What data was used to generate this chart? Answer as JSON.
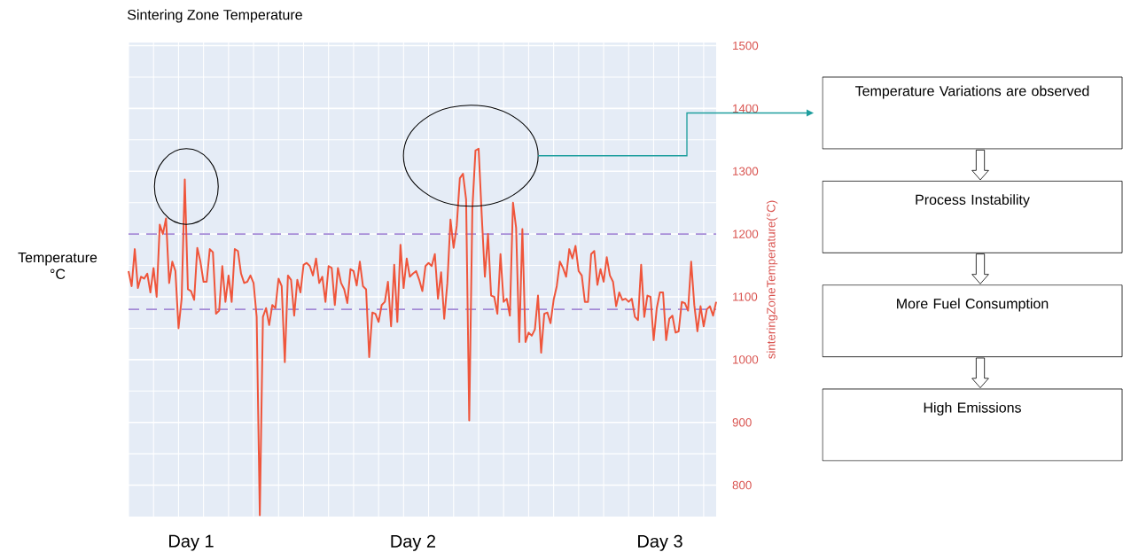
{
  "chart_data": {
    "type": "line",
    "title": "Sintering Zone Temperature",
    "ylabel": "sinteringZoneTemperature(°C)",
    "annotations": [
      "Temperature °C",
      "Temperature Variations are observed",
      "Process Instability",
      "More Fuel Consumption",
      "High Emissions"
    ],
    "categories": [
      null,
      null,
      null,
      null,
      null,
      null,
      null,
      null,
      null,
      null,
      null,
      null,
      null,
      null,
      null,
      null,
      null,
      null,
      null,
      null,
      "Day 1",
      null,
      null,
      null,
      null,
      null,
      null,
      null,
      null,
      null,
      null,
      null,
      null,
      null,
      null,
      null,
      null,
      null,
      null,
      null,
      null,
      null,
      null,
      null,
      null,
      null,
      null,
      null,
      null,
      null,
      null,
      null,
      null,
      null,
      null,
      null,
      null,
      null,
      null,
      null,
      null,
      null,
      null,
      null,
      null,
      null,
      null,
      null,
      null,
      null,
      null,
      null,
      null,
      null,
      null,
      null,
      null,
      null,
      null,
      null,
      null,
      null,
      null,
      null,
      null,
      null,
      null,
      null,
      null,
      null,
      null,
      "Day 2",
      null,
      null,
      null,
      null,
      null,
      null,
      null,
      null,
      null,
      null,
      null,
      null,
      null,
      null,
      null,
      null,
      null,
      null,
      null,
      null,
      null,
      null,
      null,
      null,
      null,
      null,
      null,
      null,
      null,
      null,
      null,
      null,
      null,
      null,
      null,
      null,
      null,
      null,
      null,
      null,
      null,
      null,
      null,
      null,
      null,
      null,
      null,
      null,
      null,
      null,
      null,
      null,
      null,
      null,
      null,
      null,
      null,
      null,
      null,
      null,
      null,
      null,
      null,
      null,
      null,
      null,
      null,
      null,
      null,
      null,
      null,
      null,
      null,
      null,
      null,
      null,
      null,
      null,
      "Day 3",
      null,
      null,
      null,
      null,
      null,
      null,
      null,
      null,
      null,
      null,
      null,
      null,
      null,
      null,
      null,
      null,
      null,
      null
    ],
    "values": [
      1141,
      1117,
      1176,
      1114,
      1132,
      1129,
      1137,
      1107,
      1146,
      1100,
      1215,
      1200,
      1225,
      1122,
      1156,
      1141,
      1050,
      1097,
      1287,
      1112,
      1109,
      1095,
      1178,
      1156,
      1124,
      1124,
      1176,
      1171,
      1073,
      1078,
      1149,
      1092,
      1134,
      1092,
      1176,
      1173,
      1137,
      1122,
      1124,
      1134,
      1122,
      1068,
      752,
      1068,
      1082,
      1055,
      1087,
      1082,
      1129,
      1117,
      996,
      1134,
      1127,
      1070,
      1127,
      1107,
      1151,
      1154,
      1149,
      1134,
      1161,
      1122,
      1132,
      1092,
      1149,
      1146,
      1087,
      1146,
      1122,
      1112,
      1090,
      1144,
      1141,
      1118,
      1156,
      1117,
      1112,
      1004,
      1075,
      1073,
      1060,
      1087,
      1092,
      1124,
      1053,
      1151,
      1060,
      1183,
      1114,
      1161,
      1132,
      1137,
      1141,
      1127,
      1109,
      1149,
      1154,
      1149,
      1168,
      1097,
      1139,
      1065,
      1122,
      1223,
      1178,
      1213,
      1289,
      1296,
      1255,
      903,
      1240,
      1333,
      1336,
      1230,
      1132,
      1200,
      1102,
      1100,
      1073,
      1168,
      1092,
      1097,
      1070,
      1250,
      1210,
      1028,
      1208,
      1028,
      1043,
      1038,
      1048,
      1102,
      1011,
      1073,
      1075,
      1058,
      1095,
      1117,
      1156,
      1146,
      1132,
      1176,
      1161,
      1181,
      1141,
      1134,
      1092,
      1092,
      1168,
      1173,
      1119,
      1144,
      1124,
      1163,
      1134,
      1124,
      1085,
      1107,
      1095,
      1097,
      1092,
      1097,
      1068,
      1063,
      1151,
      1068,
      1102,
      1100,
      1031,
      1082,
      1107,
      1107,
      1031,
      1065,
      1070,
      1043,
      1045,
      1092,
      1090,
      1078,
      1156,
      1087,
      1045,
      1085,
      1053,
      1080,
      1085,
      1070,
      1092
    ],
    "color": "#ef553b",
    "line_style": "solid",
    "marker": "none",
    "grid": true,
    "ylim": [
      750,
      1505
    ],
    "yticks": [
      800,
      900,
      1000,
      1100,
      1200,
      1300,
      1400,
      1500
    ],
    "ref_lines": [
      {
        "axis": "y",
        "value": 1200,
        "color": "#a48ad6",
        "line_style": "dashed"
      },
      {
        "axis": "y",
        "value": 1080,
        "color": "#a48ad6",
        "line_style": "dashed"
      }
    ]
  }
}
